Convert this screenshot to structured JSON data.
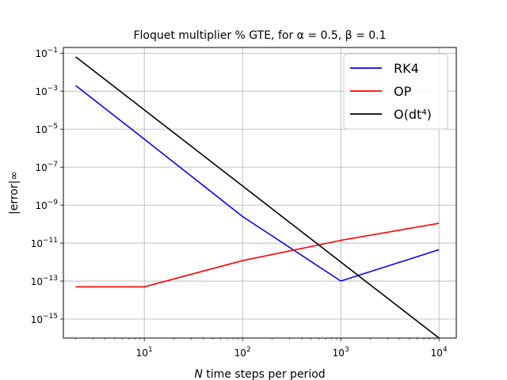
{
  "chart_data": {
    "type": "line",
    "title": "Floquet multiplier % GTE, for α = 0.5, β = 0.1",
    "xlabel": "N time steps per period",
    "ylabel": "|error|∞",
    "xscale": "log",
    "yscale": "log",
    "xlim": [
      1.5,
      15000
    ],
    "ylim": [
      1e-16,
      0.2
    ],
    "grid": true,
    "legend_position": "upper right",
    "x_ticks": [
      {
        "value": 10,
        "base": "10",
        "exp": "1"
      },
      {
        "value": 100,
        "base": "10",
        "exp": "2"
      },
      {
        "value": 1000,
        "base": "10",
        "exp": "3"
      },
      {
        "value": 10000,
        "base": "10",
        "exp": "4"
      }
    ],
    "y_ticks": [
      {
        "value": 0.1,
        "base": "10",
        "exp": "−1"
      },
      {
        "value": 0.001,
        "base": "10",
        "exp": "−3"
      },
      {
        "value": 1e-05,
        "base": "10",
        "exp": "−5"
      },
      {
        "value": 1e-07,
        "base": "10",
        "exp": "−7"
      },
      {
        "value": 1e-09,
        "base": "10",
        "exp": "−9"
      },
      {
        "value": 1e-11,
        "base": "10",
        "exp": "−11"
      },
      {
        "value": 1e-13,
        "base": "10",
        "exp": "−13"
      },
      {
        "value": 1e-15,
        "base": "10",
        "exp": "−15"
      }
    ],
    "series": [
      {
        "name": "RK4",
        "color": "#0000ff",
        "x": [
          2,
          10,
          100,
          1000,
          10000
        ],
        "y": [
          0.002,
          3e-06,
          2.5e-10,
          1e-13,
          4.5e-12
        ]
      },
      {
        "name": "OP",
        "color": "#ff0000",
        "x": [
          2,
          10,
          100,
          1000,
          10000
        ],
        "y": [
          5e-14,
          5e-14,
          1.2e-12,
          1.4e-11,
          1.1e-10
        ]
      },
      {
        "name": "O(dt⁴)",
        "color": "#000000",
        "x": [
          2,
          10000
        ],
        "y": [
          0.065,
          1e-16
        ]
      }
    ]
  }
}
